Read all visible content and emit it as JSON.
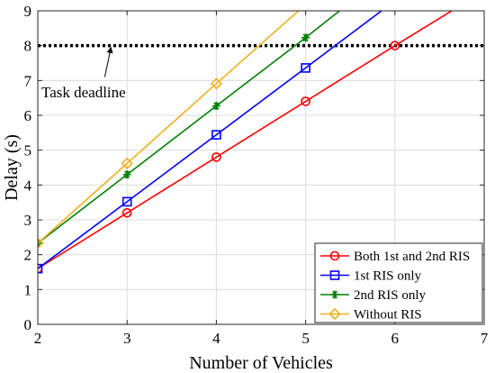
{
  "chart_data": {
    "type": "line",
    "xlabel": "Number of Vehicles",
    "ylabel": "Delay (s)",
    "xlim": [
      2,
      7
    ],
    "ylim": [
      0,
      9
    ],
    "xticks": [
      "2",
      "3",
      "4",
      "5",
      "6",
      "7"
    ],
    "yticks": [
      "0",
      "1",
      "2",
      "3",
      "4",
      "5",
      "6",
      "7",
      "8",
      "9"
    ],
    "grid": true,
    "legend_position": "bottom-right",
    "series": [
      {
        "name": "Both 1st and 2nd RIS",
        "color": "#ff0000",
        "marker": "circle",
        "x": [
          2,
          3,
          4,
          5,
          6
        ],
        "y": [
          1.6,
          3.2,
          4.8,
          6.4,
          8.0
        ],
        "line_end": [
          6.7,
          9.1
        ]
      },
      {
        "name": "1st RIS only",
        "color": "#0000ff",
        "marker": "square",
        "x": [
          2,
          3,
          4,
          5
        ],
        "y": [
          1.6,
          3.52,
          5.44,
          7.36
        ],
        "line_end": [
          5.85,
          9.0
        ]
      },
      {
        "name": "2nd RIS only",
        "color": "#008000",
        "marker": "asterisk",
        "x": [
          2,
          3,
          4,
          5
        ],
        "y": [
          2.33,
          4.3,
          6.27,
          8.23
        ],
        "line_end": [
          5.38,
          9.0
        ]
      },
      {
        "name": "Without RIS",
        "color": "#edb120",
        "marker": "diamond",
        "x": [
          2,
          3,
          4
        ],
        "y": [
          2.33,
          4.62,
          6.91
        ],
        "line_end": [
          4.92,
          9.0
        ]
      }
    ],
    "reference_line": {
      "y": 8,
      "style": "dotted",
      "color": "#000000"
    },
    "annotation": {
      "text": "Task deadline",
      "arrow_from": [
        2.75,
        7.1
      ],
      "arrow_to": [
        2.82,
        7.95
      ]
    }
  }
}
